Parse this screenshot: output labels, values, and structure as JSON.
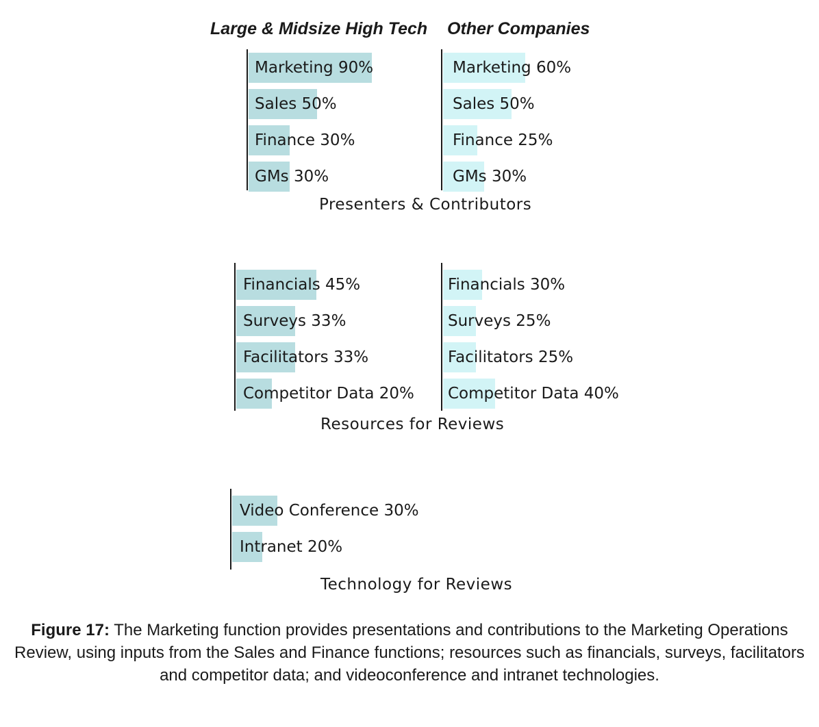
{
  "chart_data": [
    {
      "type": "bar",
      "orientation": "horizontal",
      "subtitle": "Presenters & Contributors",
      "series": [
        {
          "name": "Large & Midsize High Tech",
          "categories": [
            "Marketing",
            "Sales",
            "Finance",
            "GMs"
          ],
          "values": [
            90,
            50,
            30,
            30
          ],
          "labels": [
            "Marketing 90%",
            "Sales 50%",
            "Finance 30%",
            "GMs 30%"
          ],
          "color": "#b8dde0"
        },
        {
          "name": "Other Companies",
          "categories": [
            "Marketing",
            "Sales",
            "Finance",
            "GMs"
          ],
          "values": [
            60,
            50,
            25,
            30
          ],
          "labels": [
            "Marketing 60%",
            "Sales 50%",
            "Finance 25%",
            "GMs 30%"
          ],
          "color": "#d2f4f6"
        }
      ],
      "unit": "%"
    },
    {
      "type": "bar",
      "orientation": "horizontal",
      "subtitle": "Resources for Reviews",
      "series": [
        {
          "name": "Large & Midsize High Tech",
          "categories": [
            "Financials",
            "Surveys",
            "Facilitators",
            "Competitor Data"
          ],
          "values": [
            45,
            33,
            33,
            20
          ],
          "labels": [
            "Financials 45%",
            "Surveys 33%",
            "Facilitators 33%",
            "Competitor Data 20%"
          ],
          "color": "#b8dde0"
        },
        {
          "name": "Other Companies",
          "categories": [
            "Financials",
            "Surveys",
            "Facilitators",
            "Competitor Data"
          ],
          "values": [
            30,
            25,
            25,
            40
          ],
          "labels": [
            "Financials 30%",
            "Surveys 25%",
            "Facilitators 25%",
            "Competitor Data 40%"
          ],
          "color": "#d2f4f6"
        }
      ],
      "unit": "%"
    },
    {
      "type": "bar",
      "orientation": "horizontal",
      "subtitle": "Technology for Reviews",
      "series": [
        {
          "name": "Large & Midsize High Tech",
          "categories": [
            "Video Conference",
            "Intranet"
          ],
          "values": [
            30,
            20
          ],
          "labels": [
            "Video Conference 30%",
            "Intranet 20%"
          ],
          "color": "#b8dde0"
        }
      ],
      "unit": "%"
    }
  ],
  "headers": {
    "left": "Large & Midsize High Tech",
    "right": "Other Companies"
  },
  "figure_caption": {
    "prefix": "Figure 17:",
    "text": " The Marketing function provides presentations and contributions to the Marketing Operations Review, using inputs from the Sales and Finance functions; resources such as financials, surveys, facilitators and competitor data; and videoconference and intranet technologies."
  }
}
